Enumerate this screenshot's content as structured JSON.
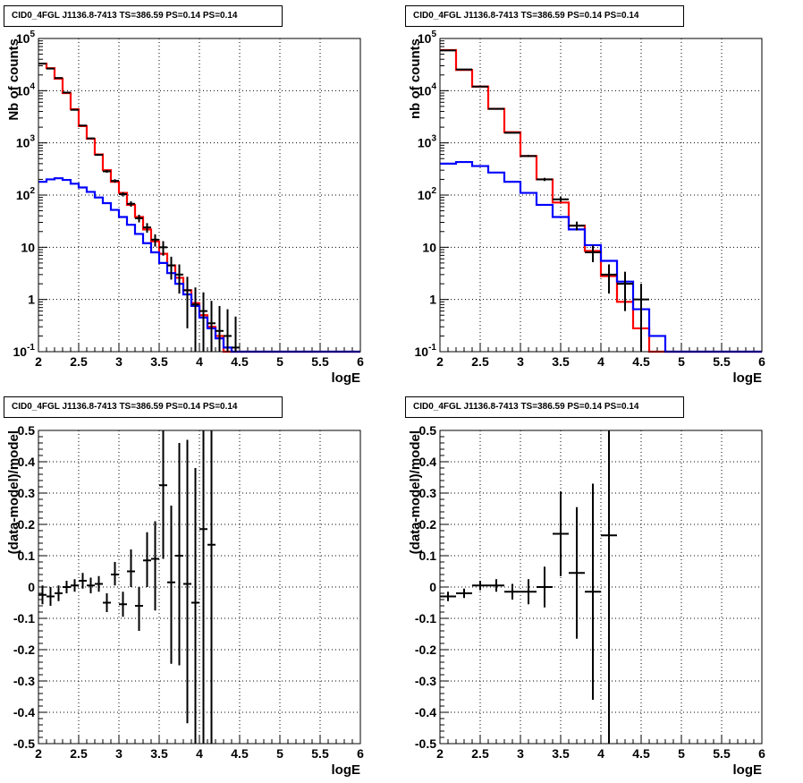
{
  "chart_data": [
    {
      "type": "line",
      "title": "CID0_4FGL J1136.8-7413 TS=386.59 PS=0.14 PS=0.14",
      "xlabel": "logE",
      "ylabel": "Nb of counts",
      "xlim": [
        2,
        6
      ],
      "ylim": [
        0.1,
        100000
      ],
      "yscale": "log",
      "grid": true,
      "x_ticks": [
        "2",
        "2.5",
        "3",
        "3.5",
        "4",
        "4.5",
        "5",
        "5.5",
        "6"
      ],
      "y_ticks": [
        "10^-1",
        "1",
        "10",
        "10^2",
        "10^3",
        "10^4",
        "10^5"
      ],
      "bin_edges": [
        2.0,
        2.1,
        2.2,
        2.3,
        2.4,
        2.5,
        2.6,
        2.7,
        2.8,
        2.9,
        3.0,
        3.1,
        3.2,
        3.3,
        3.4,
        3.5,
        3.6,
        3.7,
        3.8,
        3.9,
        4.0,
        4.1,
        4.2,
        4.3,
        4.4,
        4.5,
        4.6,
        4.7,
        4.8,
        4.9,
        5.0,
        5.1,
        5.2,
        5.3,
        5.4,
        5.5,
        5.6,
        5.7,
        5.8,
        5.9,
        6.0
      ],
      "series": [
        {
          "color": "#ff0000",
          "values": [
            33000,
            27000,
            17000,
            9000,
            4400,
            2100,
            1200,
            600,
            300,
            180,
            110,
            65,
            38,
            22,
            13,
            7.5,
            4.5,
            2.6,
            1.5,
            0.85,
            0.5,
            0.3,
            0.2,
            0.1,
            0.1,
            0.1,
            0.1,
            0.1,
            0.1,
            0.1,
            0.1,
            0.1,
            0.1,
            0.1,
            0.1,
            0.1,
            0.1,
            0.1,
            0.1,
            0.1
          ]
        },
        {
          "color": "#0000ff",
          "values": [
            180,
            200,
            210,
            195,
            165,
            140,
            115,
            90,
            70,
            52,
            38,
            27,
            18,
            12,
            8,
            5,
            3.2,
            2,
            1.25,
            0.75,
            0.45,
            0.28,
            0.18,
            0.12,
            0.1,
            0.1,
            0.1,
            0.1,
            0.1,
            0.1,
            0.1,
            0.1,
            0.1,
            0.1,
            0.1,
            0.1,
            0.1,
            0.1,
            0.1,
            0.1
          ]
        }
      ],
      "points": [
        {
          "x": 2.05,
          "y": 33000,
          "ylo": 32800,
          "yhi": 33200
        },
        {
          "x": 2.15,
          "y": 26500,
          "ylo": 26300,
          "yhi": 26700
        },
        {
          "x": 2.25,
          "y": 17500,
          "ylo": 17300,
          "yhi": 17700
        },
        {
          "x": 2.35,
          "y": 9200,
          "ylo": 9100,
          "yhi": 9300
        },
        {
          "x": 2.45,
          "y": 4300,
          "ylo": 4230,
          "yhi": 4370
        },
        {
          "x": 2.55,
          "y": 2150,
          "ylo": 2100,
          "yhi": 2200
        },
        {
          "x": 2.65,
          "y": 1220,
          "ylo": 1180,
          "yhi": 1260
        },
        {
          "x": 2.75,
          "y": 590,
          "ylo": 565,
          "yhi": 615
        },
        {
          "x": 2.85,
          "y": 285,
          "ylo": 268,
          "yhi": 302
        },
        {
          "x": 2.95,
          "y": 187,
          "ylo": 173,
          "yhi": 201
        },
        {
          "x": 3.05,
          "y": 104,
          "ylo": 94,
          "yhi": 114
        },
        {
          "x": 3.15,
          "y": 68,
          "ylo": 60,
          "yhi": 76
        },
        {
          "x": 3.25,
          "y": 36,
          "ylo": 30,
          "yhi": 42
        },
        {
          "x": 3.35,
          "y": 24,
          "ylo": 19,
          "yhi": 29
        },
        {
          "x": 3.45,
          "y": 14,
          "ylo": 10.3,
          "yhi": 17.7
        },
        {
          "x": 3.55,
          "y": 10,
          "ylo": 6.9,
          "yhi": 13.1
        },
        {
          "x": 3.65,
          "y": 4.5,
          "ylo": 2.4,
          "yhi": 6.6
        },
        {
          "x": 3.75,
          "y": 3,
          "ylo": 1.3,
          "yhi": 4.7
        },
        {
          "x": 3.85,
          "y": 1.5,
          "ylo": 0.28,
          "yhi": 2.72
        },
        {
          "x": 3.95,
          "y": 0.8,
          "ylo": 0.1,
          "yhi": 1.7
        },
        {
          "x": 4.05,
          "y": 0.6,
          "ylo": 0.1,
          "yhi": 1.37
        },
        {
          "x": 4.15,
          "y": 0.35,
          "ylo": 0.1,
          "yhi": 0.94
        },
        {
          "x": 4.25,
          "y": 0.25,
          "ylo": 0.1,
          "yhi": 0.75
        },
        {
          "x": 4.35,
          "y": 0.2,
          "ylo": 0.1,
          "yhi": 0.65
        },
        {
          "x": 4.45,
          "y": 0.12,
          "ylo": 0.1,
          "yhi": 0.47
        }
      ]
    },
    {
      "type": "line",
      "title": "CID0_4FGL J1136.8-7413 TS=386.59 PS=0.14 PS=0.14",
      "xlabel": "logE",
      "ylabel": "nb of counts",
      "xlim": [
        2,
        6
      ],
      "ylim": [
        0.1,
        100000
      ],
      "yscale": "log",
      "grid": true,
      "x_ticks": [
        "2",
        "2.5",
        "3",
        "3.5",
        "4",
        "4.5",
        "5",
        "5.5",
        "6"
      ],
      "y_ticks": [
        "10^-1",
        "1",
        "10",
        "10^2",
        "10^3",
        "10^4",
        "10^5"
      ],
      "bin_edges": [
        2.0,
        2.2,
        2.4,
        2.6,
        2.8,
        3.0,
        3.2,
        3.4,
        3.6,
        3.8,
        4.0,
        4.2,
        4.4,
        4.6,
        4.8,
        5.0,
        5.2,
        5.4,
        5.6,
        5.8,
        6.0
      ],
      "series": [
        {
          "color": "#ff0000",
          "values": [
            60000,
            25000,
            12000,
            4500,
            1600,
            560,
            200,
            72,
            26,
            8.5,
            2.8,
            0.9,
            0.28,
            0.1,
            0.1,
            0.1,
            0.1,
            0.1,
            0.1,
            0.1
          ]
        },
        {
          "color": "#0000ff",
          "values": [
            400,
            430,
            360,
            270,
            180,
            110,
            65,
            38,
            22,
            11,
            5.5,
            2.2,
            0.65,
            0.2,
            0.1,
            0.1,
            0.1,
            0.1,
            0.1,
            0.1
          ]
        }
      ],
      "points": [
        {
          "x": 2.1,
          "y": 59000,
          "ylo": 58700,
          "yhi": 59300
        },
        {
          "x": 2.3,
          "y": 25500,
          "ylo": 25300,
          "yhi": 25700
        },
        {
          "x": 2.5,
          "y": 12000,
          "ylo": 11850,
          "yhi": 12150
        },
        {
          "x": 2.7,
          "y": 4500,
          "ylo": 4430,
          "yhi": 4570
        },
        {
          "x": 2.9,
          "y": 1560,
          "ylo": 1520,
          "yhi": 1600
        },
        {
          "x": 3.1,
          "y": 560,
          "ylo": 535,
          "yhi": 585
        },
        {
          "x": 3.3,
          "y": 200,
          "ylo": 186,
          "yhi": 214
        },
        {
          "x": 3.5,
          "y": 83,
          "ylo": 74,
          "yhi": 92
        },
        {
          "x": 3.7,
          "y": 26,
          "ylo": 21,
          "yhi": 31
        },
        {
          "x": 3.9,
          "y": 8,
          "ylo": 5.2,
          "yhi": 10.8
        },
        {
          "x": 4.1,
          "y": 3,
          "ylo": 1.3,
          "yhi": 4.7
        },
        {
          "x": 4.3,
          "y": 2,
          "ylo": 0.6,
          "yhi": 3.4
        },
        {
          "x": 4.5,
          "y": 1,
          "ylo": 0.1,
          "yhi": 2
        }
      ]
    },
    {
      "type": "scatter",
      "title": "CID0_4FGL J1136.8-7413 TS=386.59 PS=0.14 PS=0.14",
      "xlabel": "logE",
      "ylabel": "(data-model)/model",
      "xlim": [
        2,
        6
      ],
      "ylim": [
        -0.5,
        0.5
      ],
      "grid": true,
      "x_ticks": [
        "2",
        "2.5",
        "3",
        "3.5",
        "4",
        "4.5",
        "5",
        "5.5",
        "6"
      ],
      "y_ticks": [
        "-0.5",
        "-0.4",
        "-0.3",
        "-0.2",
        "-0.1",
        "0",
        "0.1",
        "0.2",
        "0.3",
        "0.4",
        "0.5"
      ],
      "points": [
        {
          "x": 2.05,
          "y": -0.025,
          "ylo": -0.055,
          "yhi": 0.005
        },
        {
          "x": 2.15,
          "y": -0.03,
          "ylo": -0.06,
          "yhi": 0.0
        },
        {
          "x": 2.25,
          "y": -0.02,
          "ylo": -0.045,
          "yhi": 0.005
        },
        {
          "x": 2.35,
          "y": 0.0,
          "ylo": -0.02,
          "yhi": 0.02
        },
        {
          "x": 2.45,
          "y": 0.005,
          "ylo": -0.015,
          "yhi": 0.025
        },
        {
          "x": 2.55,
          "y": 0.02,
          "ylo": -0.005,
          "yhi": 0.045
        },
        {
          "x": 2.65,
          "y": 0.005,
          "ylo": -0.02,
          "yhi": 0.03
        },
        {
          "x": 2.75,
          "y": 0.01,
          "ylo": -0.015,
          "yhi": 0.035
        },
        {
          "x": 2.85,
          "y": -0.05,
          "ylo": -0.08,
          "yhi": -0.02
        },
        {
          "x": 2.95,
          "y": 0.04,
          "ylo": 0.005,
          "yhi": 0.08
        },
        {
          "x": 3.05,
          "y": -0.055,
          "ylo": -0.095,
          "yhi": -0.015
        },
        {
          "x": 3.15,
          "y": 0.05,
          "ylo": 0.0,
          "yhi": 0.12
        },
        {
          "x": 3.25,
          "y": -0.06,
          "ylo": -0.14,
          "yhi": 0.0
        },
        {
          "x": 3.35,
          "y": 0.085,
          "ylo": 0.0,
          "yhi": 0.175
        },
        {
          "x": 3.45,
          "y": 0.09,
          "ylo": -0.075,
          "yhi": 0.21
        },
        {
          "x": 3.55,
          "y": 0.325,
          "ylo": 0.09,
          "yhi": 0.5
        },
        {
          "x": 3.65,
          "y": 0.015,
          "ylo": -0.245,
          "yhi": 0.26
        },
        {
          "x": 3.75,
          "y": 0.1,
          "ylo": -0.25,
          "yhi": 0.46
        },
        {
          "x": 3.85,
          "y": 0.01,
          "ylo": -0.435,
          "yhi": 0.47
        },
        {
          "x": 3.95,
          "y": -0.05,
          "ylo": -0.5,
          "yhi": 0.38
        },
        {
          "x": 4.05,
          "y": 0.185,
          "ylo": -0.5,
          "yhi": 0.5
        },
        {
          "x": 4.15,
          "y": 0.135,
          "ylo": -0.5,
          "yhi": 0.5
        }
      ]
    },
    {
      "type": "scatter",
      "title": "CID0_4FGL J1136.8-7413 TS=386.59 PS=0.14 PS=0.14",
      "xlabel": "logE",
      "ylabel": "(data-model)/model",
      "xlim": [
        2,
        6
      ],
      "ylim": [
        -0.5,
        0.5
      ],
      "grid": true,
      "x_ticks": [
        "2",
        "2.5",
        "3",
        "3.5",
        "4",
        "4.5",
        "5",
        "5.5",
        "6"
      ],
      "y_ticks": [
        "-0.5",
        "-0.4",
        "-0.3",
        "-0.2",
        "-0.1",
        "0",
        "0.1",
        "0.2",
        "0.3",
        "0.4",
        "0.5"
      ],
      "points": [
        {
          "x": 2.1,
          "y": -0.03,
          "ylo": -0.045,
          "yhi": -0.015
        },
        {
          "x": 2.3,
          "y": -0.02,
          "ylo": -0.035,
          "yhi": -0.005
        },
        {
          "x": 2.5,
          "y": 0.005,
          "ylo": -0.01,
          "yhi": 0.02
        },
        {
          "x": 2.7,
          "y": 0.005,
          "ylo": -0.015,
          "yhi": 0.025
        },
        {
          "x": 2.9,
          "y": -0.015,
          "ylo": -0.04,
          "yhi": 0.01
        },
        {
          "x": 3.1,
          "y": -0.015,
          "ylo": -0.055,
          "yhi": 0.025
        },
        {
          "x": 3.3,
          "y": 0.0,
          "ylo": -0.065,
          "yhi": 0.065
        },
        {
          "x": 3.5,
          "y": 0.17,
          "ylo": 0.035,
          "yhi": 0.305
        },
        {
          "x": 3.7,
          "y": 0.045,
          "ylo": -0.165,
          "yhi": 0.255
        },
        {
          "x": 3.9,
          "y": -0.015,
          "ylo": -0.36,
          "yhi": 0.33
        },
        {
          "x": 4.1,
          "y": 0.165,
          "ylo": -0.5,
          "yhi": 0.5
        }
      ]
    }
  ]
}
